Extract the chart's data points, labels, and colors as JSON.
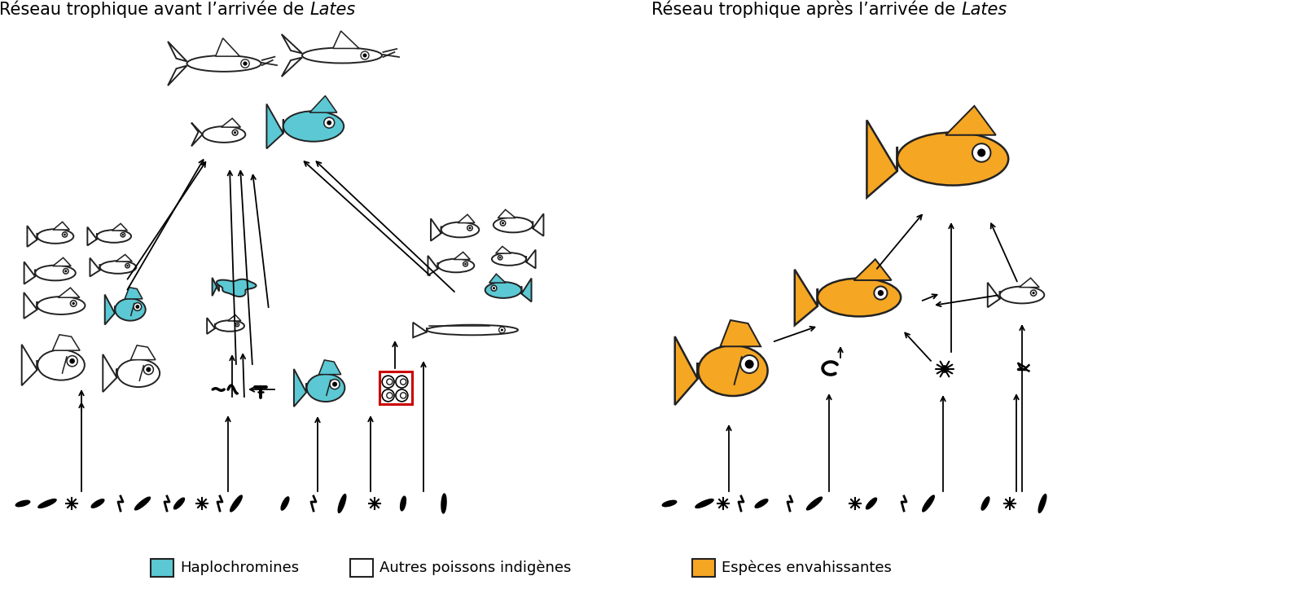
{
  "title_left_normal": "Réseau trophique avant l’arrivée de ",
  "title_left_italic": "Lates",
  "title_right_normal": "Réseau trophique après l’arrivée de ",
  "title_right_italic": "Lates",
  "color_haplo": "#5BC8D4",
  "color_native": "#ffffff",
  "color_invasive": "#F5A623",
  "color_outline": "#222222",
  "color_bg": "#ffffff",
  "color_red_box": "#cc0000",
  "legend_haplo": "Haplochromines",
  "legend_native": "Autres poissons indigènes",
  "legend_invasive": "Espèces envahissantes",
  "title_fontsize": 15,
  "legend_fontsize": 13,
  "fig_width": 16.0,
  "fig_height": 7.34,
  "dpi": 100
}
